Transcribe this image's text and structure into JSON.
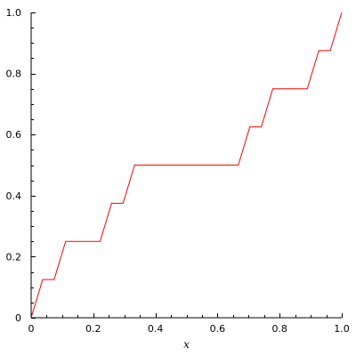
{
  "chart_data": {
    "type": "line",
    "title": "",
    "xlabel": "x",
    "ylabel": "",
    "xlim": [
      0,
      1
    ],
    "ylim": [
      0,
      1
    ],
    "x_ticks": [
      0,
      0.2,
      0.4,
      0.6,
      0.8,
      1
    ],
    "x_tick_labels": [
      "0",
      "0.2",
      "0.4",
      "0.6",
      "0.8",
      "1.0"
    ],
    "y_ticks": [
      0,
      0.2,
      0.4,
      0.6,
      0.8,
      1
    ],
    "y_tick_labels": [
      "0",
      "0.2",
      "0.4",
      "0.6",
      "0.8",
      "1.0"
    ],
    "grid": false,
    "legend": "none",
    "series": [
      {
        "color": "#ff0000",
        "x": [
          0,
          0.037,
          0.074,
          0.111,
          0.222,
          0.259,
          0.296,
          0.333,
          0.667,
          0.704,
          0.741,
          0.778,
          0.889,
          0.926,
          0.963,
          1.0
        ],
        "y": [
          0,
          0.125,
          0.125,
          0.25,
          0.25,
          0.375,
          0.375,
          0.5,
          0.5,
          0.625,
          0.625,
          0.75,
          0.75,
          0.875,
          0.875,
          1.0
        ]
      }
    ]
  }
}
